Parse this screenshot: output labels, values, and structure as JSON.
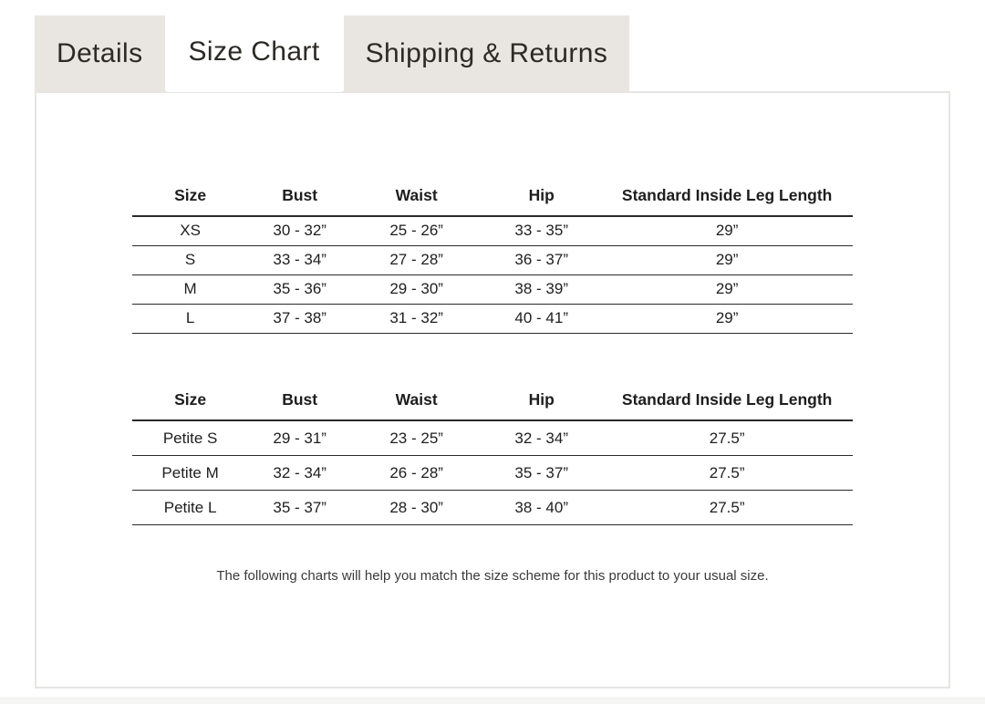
{
  "tabs": [
    {
      "label": "Details",
      "active": false
    },
    {
      "label": "Size Chart",
      "active": true
    },
    {
      "label": "Shipping & Returns",
      "active": false
    }
  ],
  "size_chart": {
    "columns": [
      "Size",
      "Bust",
      "Waist",
      "Hip",
      "Standard Inside Leg Length"
    ],
    "regular_table": {
      "rows": [
        [
          "XS",
          "30 - 32”",
          "25 - 26”",
          "33 - 35”",
          "29”"
        ],
        [
          "S",
          "33 - 34”",
          "27 - 28”",
          "36 - 37”",
          "29”"
        ],
        [
          "M",
          "35 - 36”",
          "29 - 30”",
          "38 - 39”",
          "29”"
        ],
        [
          "L",
          "37 - 38”",
          "31 - 32”",
          "40 - 41”",
          "29”"
        ]
      ]
    },
    "petite_table": {
      "rows": [
        [
          "Petite S",
          "29 - 31”",
          "23 - 25”",
          "32 - 34”",
          "27.5”"
        ],
        [
          "Petite M",
          "32 - 34”",
          "26 - 28”",
          "35 - 37”",
          "27.5”"
        ],
        [
          "Petite L",
          "35 - 37”",
          "28 - 30”",
          "38 - 40”",
          "27.5”"
        ]
      ]
    },
    "note": "The following charts will help you match the size scheme for this product to your usual size."
  },
  "colors": {
    "tab_inactive_bg": "#e9e6e1",
    "tab_active_bg": "#ffffff",
    "tab_text": "#2d2a26",
    "panel_border": "#e5e5e3",
    "table_line": "#2a2a2a",
    "table_text": "#1e1e1e",
    "note_text": "#3a3a3a"
  }
}
